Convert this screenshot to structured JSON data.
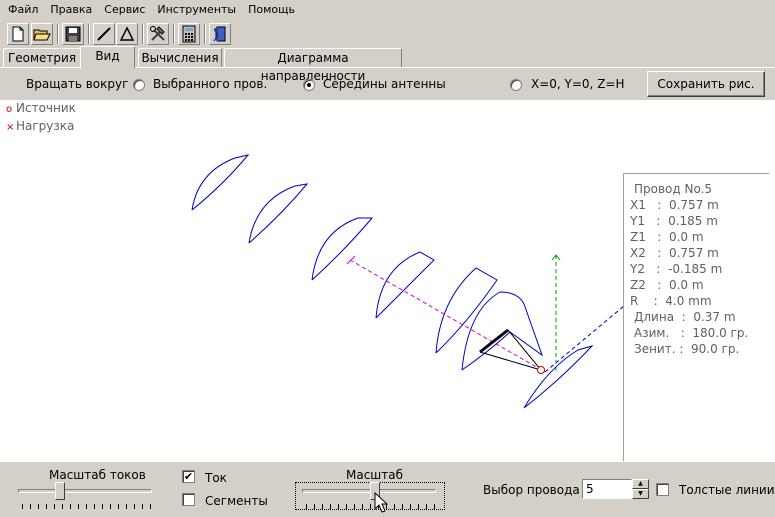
{
  "menu": {
    "file": "Файл",
    "edit": "Правка",
    "service": "Сервис",
    "tools": "Инструменты",
    "help": "Помощь"
  },
  "tabs": {
    "geometry": "Геометрия",
    "view": "Вид",
    "calc": "Вычисления",
    "diagram": "Диаграмма направленности"
  },
  "rotate": {
    "label": "Вращать вокруг :",
    "opt_selected": "Выбранного пров.",
    "opt_center": "Середины антенны",
    "opt_origin": "X=0, Y=0, Z=H",
    "selected": "center",
    "save_button": "Сохранить рис."
  },
  "legend": {
    "source": "Источник",
    "load": "Нагрузка",
    "source_marker": "o",
    "load_marker": "×",
    "source_color": "#c00000",
    "load_color": "#c00000"
  },
  "wire_info": {
    "title": "Провод No.5",
    "x1": "X1   :  0.757 m",
    "y1": "Y1   :  0.185 m",
    "z1": "Z1   :  0.0 m",
    "x2": "X2   :  0.757 m",
    "y2": "Y2   :  -0.185 m",
    "z2": "Z2   :  0.0 m",
    "r": "R    :  4.0 mm",
    "length": "Длина  :  0.37 m",
    "azimuth": "Азим.   :  180.0 гр.",
    "zenith": "Зенит. :  90.0 гр."
  },
  "bottom": {
    "current_scale_label": "Масштаб токов",
    "current_scale_value": 0.3,
    "current_checkbox": "Ток",
    "current_checked": true,
    "segments_checkbox": "Сегменты",
    "segments_checked": false,
    "scale_label": "Масштаб",
    "scale_value": 0.55,
    "wire_select_label": "Выбор провода",
    "wire_select_value": "5",
    "thick_lines_checkbox": "Толстые линии",
    "thick_lines_checked": false
  },
  "colors": {
    "current_curve": "#0000c0",
    "axis_x": "#d000d0",
    "axis_y": "#0000c0",
    "axis_z": "#00a000",
    "selected_wire": "#000000"
  }
}
